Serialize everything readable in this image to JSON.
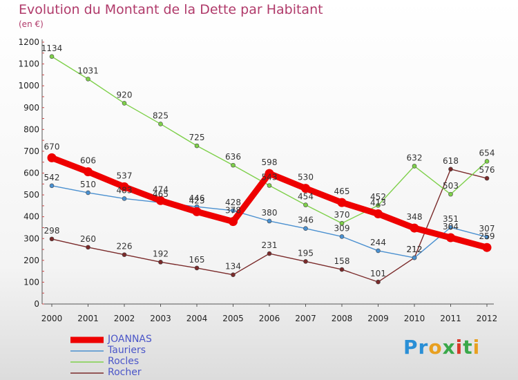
{
  "page": {
    "title": "Evolution du Montant de la Dette par Habitant",
    "subtitle": "(en €)",
    "logo_text": "Proxiti"
  },
  "chart_data": {
    "type": "line",
    "title": "Evolution du Montant de la Dette par Habitant",
    "subtitle": "(en €)",
    "xlabel": "",
    "ylabel": "",
    "x": [
      2000,
      2001,
      2002,
      2003,
      2004,
      2005,
      2006,
      2007,
      2008,
      2009,
      2010,
      2011,
      2012
    ],
    "ylim": [
      0,
      1200
    ],
    "yticks": [
      0,
      100,
      200,
      300,
      400,
      500,
      600,
      700,
      800,
      900,
      1000,
      1100,
      1200
    ],
    "grid": false,
    "legend_position": "bottom-left",
    "series": [
      {
        "name": "JOANNAS",
        "color": "#ee0000",
        "values": [
          670,
          606,
          537,
          474,
          423,
          378,
          598,
          530,
          465,
          413,
          348,
          304,
          259
        ],
        "labels": [
          "670",
          "606",
          "537",
          "474",
          "423",
          "378",
          "598",
          "530",
          "465",
          "413",
          "348",
          "304",
          "259"
        ]
      },
      {
        "name": "Tauriers",
        "color": "#4a90d0",
        "values": [
          542,
          510,
          483,
          465,
          446,
          428,
          380,
          346,
          309,
          244,
          212,
          351,
          307
        ],
        "labels": [
          "542",
          "510",
          "483",
          "465",
          "446",
          "428",
          "380",
          "346",
          "309",
          "244",
          "212",
          "351",
          "307"
        ]
      },
      {
        "name": "Rocles",
        "color": "#7ed04a",
        "values": [
          1134,
          1031,
          920,
          825,
          725,
          636,
          543,
          454,
          370,
          452,
          632,
          503,
          654
        ],
        "labels": [
          "1134",
          "1031",
          "920",
          "825",
          "725",
          "636",
          "543",
          "454",
          "370",
          "452",
          "632",
          "503",
          "654"
        ]
      },
      {
        "name": "Rocher",
        "color": "#7a2a2a",
        "values": [
          298,
          260,
          226,
          192,
          165,
          134,
          231,
          195,
          158,
          101,
          212,
          618,
          576
        ],
        "labels": [
          "298",
          "260",
          "226",
          "192",
          "165",
          "134",
          "231",
          "195",
          "158",
          "101",
          "212",
          "618",
          "576"
        ]
      }
    ]
  }
}
